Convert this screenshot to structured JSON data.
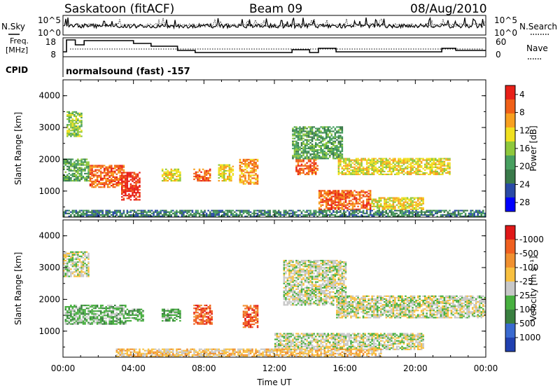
{
  "header": {
    "station": "Saskatoon (fitACF)",
    "beam": "Beam 09",
    "date": "08/Aug/2010"
  },
  "top_panels": {
    "nsky_label": "N.Sky",
    "nsky_ticks": [
      "10^5",
      "10^0"
    ],
    "nsearch_label": "N.Search",
    "nsearch_ticks": [
      "10^5",
      "10^0"
    ],
    "freq_label_1": "Freq.",
    "freq_label_2": "[MHz]",
    "freq_ticks": [
      "18",
      "8"
    ],
    "nave_label": "Nave",
    "nave_ticks": [
      "60",
      "0"
    ],
    "cpid_label": "CPID",
    "cpid_value": "normalsound (fast) -157"
  },
  "chart_data": [
    {
      "type": "heatmap",
      "name": "power",
      "ylabel": "Slant Range [km]",
      "ylim": [
        180,
        4500
      ],
      "yticks": [
        "1000",
        "2000",
        "3000",
        "4000"
      ],
      "colorbar_label": "Power [dB]",
      "colorbar_ticks": [
        "4",
        "8",
        "12",
        "16",
        "20",
        "24",
        "28"
      ],
      "colors": [
        "#0000ff",
        "#2a4aa6",
        "#3a7a4a",
        "#48a060",
        "#8ec83c",
        "#f0e020",
        "#f8a020",
        "#f06018",
        "#e82018"
      ],
      "features": [
        {
          "t": [
            0.2,
            1.0
          ],
          "r": [
            2700,
            3500
          ],
          "level": 4
        },
        {
          "t": [
            0.0,
            1.5
          ],
          "r": [
            1300,
            2000
          ],
          "level": 3
        },
        {
          "t": [
            1.5,
            3.5
          ],
          "r": [
            1100,
            1800
          ],
          "level": 7
        },
        {
          "t": [
            3.3,
            4.3
          ],
          "r": [
            700,
            1600
          ],
          "level": 8
        },
        {
          "t": [
            5.6,
            6.6
          ],
          "r": [
            1300,
            1700
          ],
          "level": 5
        },
        {
          "t": [
            7.4,
            8.3
          ],
          "r": [
            1300,
            1700
          ],
          "level": 7
        },
        {
          "t": [
            8.8,
            9.6
          ],
          "r": [
            1300,
            1800
          ],
          "level": 5
        },
        {
          "t": [
            10.0,
            11.0
          ],
          "r": [
            1200,
            2000
          ],
          "level": 6
        },
        {
          "t": [
            13.2,
            14.4
          ],
          "r": [
            1500,
            2000
          ],
          "level": 7
        },
        {
          "t": [
            13.0,
            15.8
          ],
          "r": [
            2000,
            3000
          ],
          "level": 3
        },
        {
          "t": [
            15.6,
            22.0
          ],
          "r": [
            1500,
            2000
          ],
          "level": 5
        },
        {
          "t": [
            14.5,
            17.5
          ],
          "r": [
            400,
            1000
          ],
          "level": 7
        },
        {
          "t": [
            17.5,
            20.5
          ],
          "r": [
            400,
            800
          ],
          "level": 5
        },
        {
          "t": [
            0.0,
            24.0
          ],
          "r": [
            180,
            400
          ],
          "level": 2
        }
      ]
    },
    {
      "type": "heatmap",
      "name": "velocity",
      "ylabel": "Slant Range [km]",
      "ylim": [
        180,
        4500
      ],
      "yticks": [
        "1000",
        "2000",
        "3000",
        "4000"
      ],
      "xlabel": "Time UT",
      "xticks": [
        "00:00",
        "04:00",
        "08:00",
        "12:00",
        "16:00",
        "20:00",
        "00:00"
      ],
      "colorbar_label": "Velocity [m s⁻¹]",
      "colorbar_ticks": [
        "1000",
        "500",
        "100",
        "25",
        "-25",
        "-100",
        "-500",
        "-1000"
      ],
      "colors": [
        "#2040b0",
        "#3a6ad0",
        "#3a8040",
        "#48b040",
        "#c8c8c8",
        "#f8c040",
        "#f09030",
        "#f06020",
        "#e01818"
      ],
      "features": [
        {
          "t": [
            0.0,
            1.5
          ],
          "r": [
            2700,
            3500
          ],
          "level": 4
        },
        {
          "t": [
            0.1,
            3.6
          ],
          "r": [
            1200,
            1800
          ],
          "level": 3
        },
        {
          "t": [
            3.6,
            4.5
          ],
          "r": [
            1300,
            1700
          ],
          "level": 3
        },
        {
          "t": [
            5.6,
            6.6
          ],
          "r": [
            1300,
            1700
          ],
          "level": 3
        },
        {
          "t": [
            7.4,
            8.4
          ],
          "r": [
            1200,
            1800
          ],
          "level": 7
        },
        {
          "t": [
            10.2,
            11.0
          ],
          "r": [
            1100,
            1800
          ],
          "level": 7
        },
        {
          "t": [
            12.5,
            16.0
          ],
          "r": [
            1800,
            3200
          ],
          "level": 4
        },
        {
          "t": [
            15.5,
            24.0
          ],
          "r": [
            1400,
            2100
          ],
          "level": 4
        },
        {
          "t": [
            12.0,
            20.5
          ],
          "r": [
            400,
            900
          ],
          "level": 4
        },
        {
          "t": [
            3.0,
            18.0
          ],
          "r": [
            180,
            450
          ],
          "level": 5
        }
      ]
    }
  ]
}
